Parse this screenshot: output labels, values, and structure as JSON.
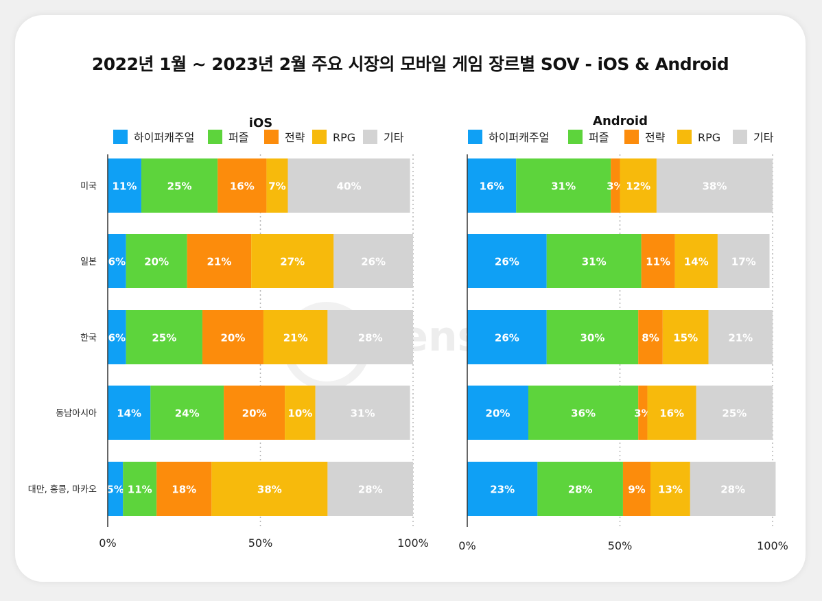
{
  "title": "2022년 1월 ~ 2023년 2월 주요 시장의 모바일 게임 장르별 SOV - iOS & Android",
  "watermark": "SensorTower",
  "colors": {
    "하이퍼캐주얼": "#0fa0f5",
    "퍼즐": "#5dd43c",
    "전략": "#fc8c0c",
    "RPG": "#f7ba0c",
    "기타": "#d3d3d3"
  },
  "chart_data": [
    {
      "type": "bar",
      "orientation": "horizontal",
      "stacked": true,
      "title": "iOS",
      "categories": [
        "미국",
        "일본",
        "한국",
        "동남아시아",
        "대만, 홍콩, 마카오"
      ],
      "x_ticks": [
        "0%",
        "50%",
        "100%"
      ],
      "xlim": [
        0,
        100
      ],
      "legend_position": "top",
      "series": [
        {
          "name": "하이퍼캐주얼",
          "values": [
            11,
            6,
            6,
            14,
            5
          ]
        },
        {
          "name": "퍼즐",
          "values": [
            25,
            20,
            25,
            24,
            11
          ]
        },
        {
          "name": "전략",
          "values": [
            16,
            21,
            20,
            20,
            18
          ]
        },
        {
          "name": "RPG",
          "values": [
            7,
            27,
            21,
            10,
            38
          ]
        },
        {
          "name": "기타",
          "values": [
            40,
            26,
            28,
            31,
            28
          ]
        }
      ]
    },
    {
      "type": "bar",
      "orientation": "horizontal",
      "stacked": true,
      "title": "Android",
      "categories": [
        "미국",
        "일본",
        "한국",
        "동남아시아",
        "대만, 홍콩, 마카오"
      ],
      "x_ticks": [
        "0%",
        "50%",
        "100%"
      ],
      "xlim": [
        0,
        100
      ],
      "legend_position": "top",
      "series": [
        {
          "name": "하이퍼캐주얼",
          "values": [
            16,
            26,
            26,
            20,
            23
          ]
        },
        {
          "name": "퍼즐",
          "values": [
            31,
            31,
            30,
            36,
            28
          ]
        },
        {
          "name": "전략",
          "values": [
            3,
            11,
            8,
            3,
            9
          ]
        },
        {
          "name": "RPG",
          "values": [
            12,
            14,
            15,
            16,
            13
          ]
        },
        {
          "name": "기타",
          "values": [
            38,
            17,
            21,
            25,
            28
          ]
        }
      ]
    }
  ]
}
